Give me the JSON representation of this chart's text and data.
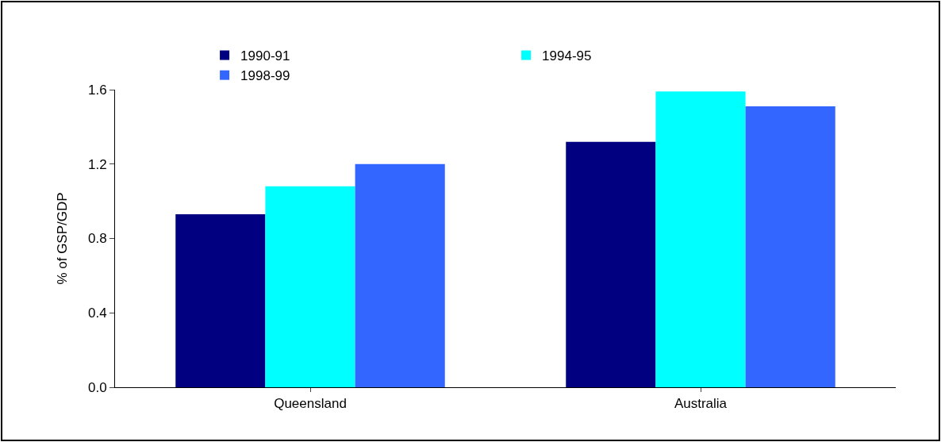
{
  "chart_data": {
    "type": "bar",
    "ylabel": "% of GSP/GDP",
    "categories": [
      "Queensland",
      "Australia"
    ],
    "series": [
      {
        "name": "1990-91",
        "color": "#000080",
        "values": [
          0.93,
          1.32
        ]
      },
      {
        "name": "1994-95",
        "color": "#00ffff",
        "values": [
          1.08,
          1.59
        ]
      },
      {
        "name": "1998-99",
        "color": "#3366ff",
        "values": [
          1.2,
          1.51
        ]
      }
    ],
    "ylim": [
      0,
      1.6
    ],
    "yticks": [
      {
        "value": 0,
        "label": "0.0"
      },
      {
        "value": 0.4,
        "label": "0.4"
      },
      {
        "value": 0.8,
        "label": "0.8"
      },
      {
        "value": 1.2,
        "label": "1.2"
      },
      {
        "value": 1.6,
        "label": "1.6"
      }
    ],
    "grid": false,
    "legend": "top"
  }
}
